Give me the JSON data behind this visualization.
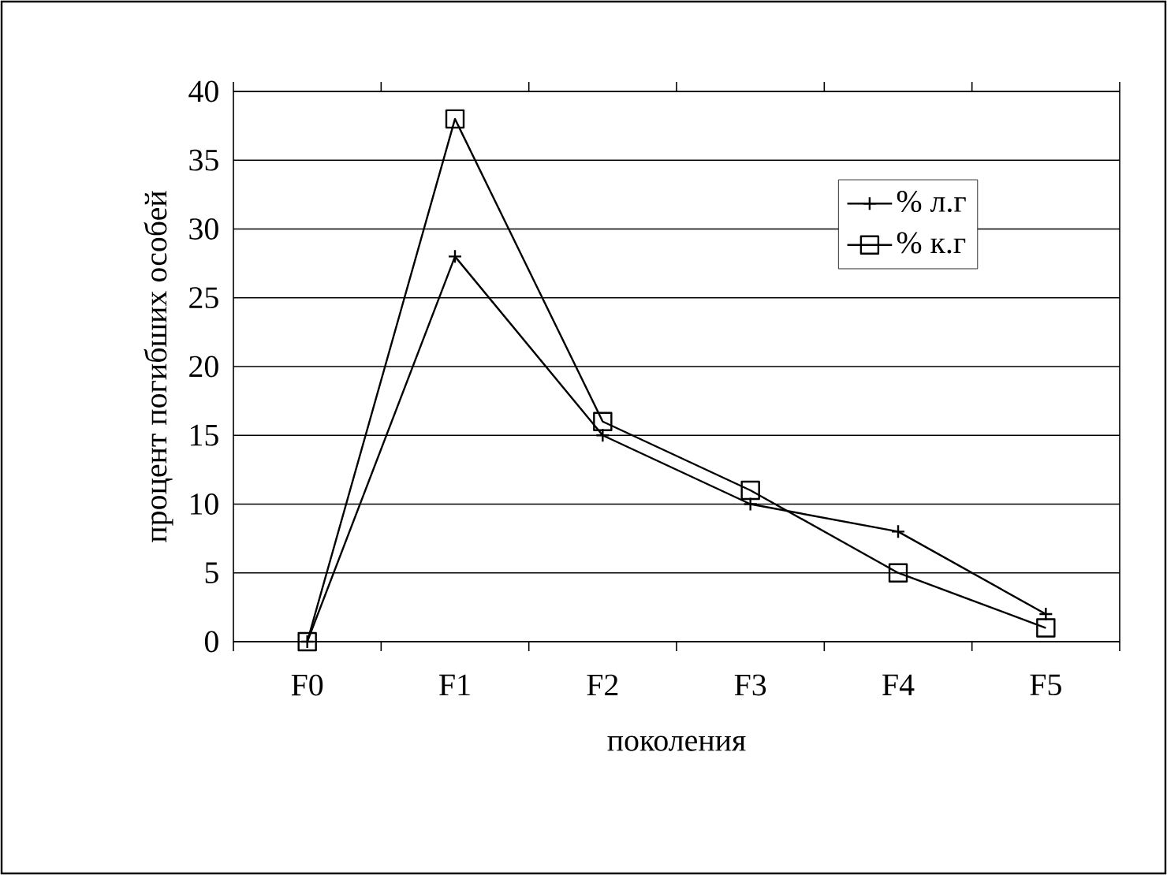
{
  "chart_data": {
    "type": "line",
    "xlabel": "поколения",
    "ylabel": "процент погибших особей",
    "categories": [
      "F0",
      "F1",
      "F2",
      "F3",
      "F4",
      "F5"
    ],
    "series": [
      {
        "name": "% л.г",
        "color": "#000000",
        "marker": "cross",
        "values": [
          0,
          28,
          15,
          10,
          8,
          2
        ]
      },
      {
        "name": "% к.г",
        "color": "#000000",
        "marker": "square",
        "values": [
          0,
          38,
          16,
          11,
          5,
          1
        ]
      }
    ],
    "ylim": [
      0,
      40
    ],
    "yticks": [
      0,
      5,
      10,
      15,
      20,
      25,
      30,
      35,
      40
    ],
    "grid": "y",
    "legend": "top right",
    "line_style": "solid"
  }
}
